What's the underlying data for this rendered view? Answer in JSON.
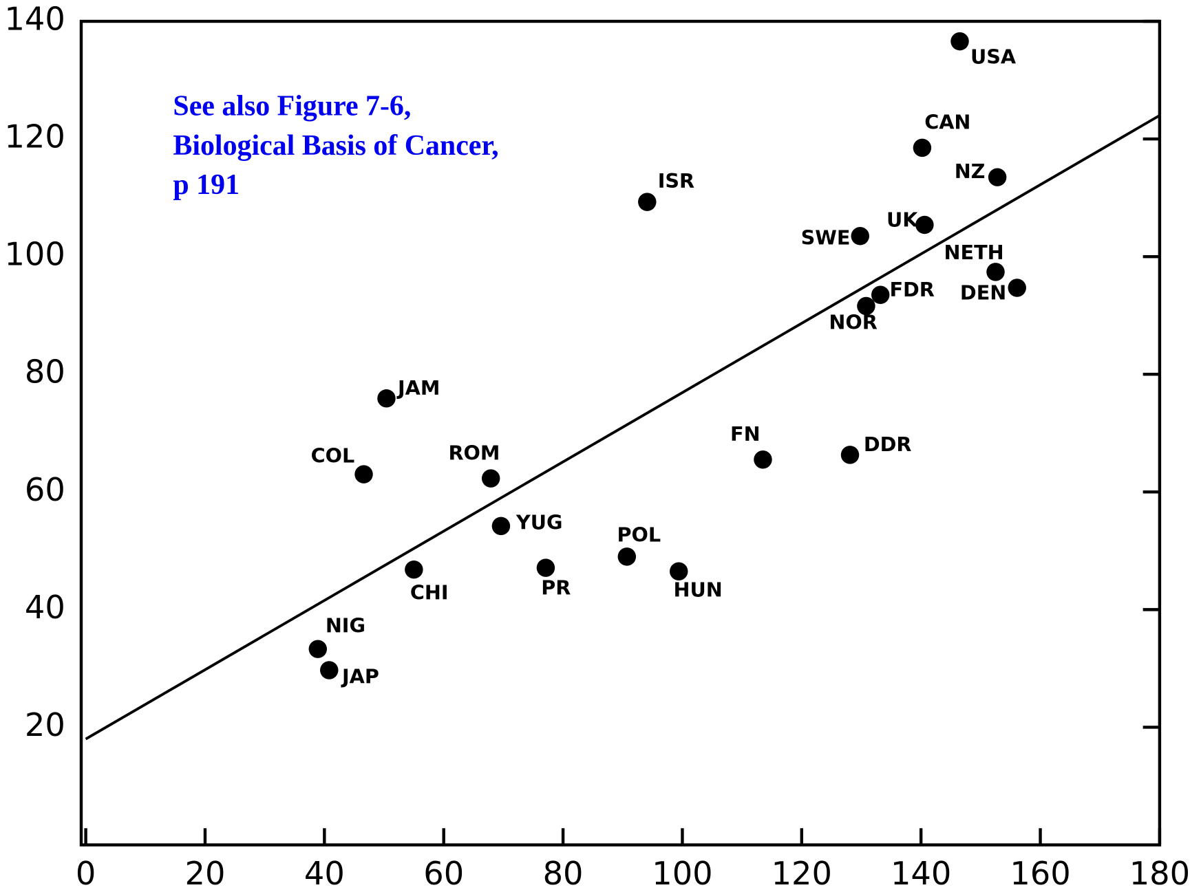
{
  "chart_data": {
    "type": "scatter",
    "annotation": [
      "See also Figure 7-6,",
      "Biological Basis of Cancer,",
      "p  191"
    ],
    "point_labels": [
      "USA",
      "CAN",
      "NZ",
      "ISR",
      "UK",
      "SWE",
      "NETH",
      "DEN",
      "FDR",
      "NOR",
      "JAM",
      "COL",
      "ROM",
      "FN",
      "DDR",
      "YUG",
      "CHI",
      "PR",
      "POL",
      "HUN",
      "NIG",
      "JAP"
    ],
    "x": [
      146.5,
      140.2,
      152.8,
      94.1,
      140.6,
      129.8,
      152.5,
      156.1,
      133.2,
      130.8,
      50.4,
      46.6,
      67.9,
      113.5,
      128.1,
      69.6,
      55.0,
      77.1,
      90.7,
      99.4,
      38.9,
      40.8
    ],
    "values": [
      136.6,
      118.5,
      113.5,
      109.3,
      105.4,
      103.5,
      97.4,
      94.7,
      93.5,
      91.6,
      75.9,
      63.0,
      62.3,
      65.5,
      66.3,
      54.2,
      46.8,
      47.1,
      49.0,
      46.5,
      33.3,
      29.7
    ],
    "color": "#000000",
    "fit_line": {
      "x": [
        0,
        180
      ],
      "y": [
        18,
        124
      ]
    },
    "xlim": [
      0,
      180
    ],
    "ylim": [
      0,
      140
    ],
    "xticks": [
      0,
      20,
      40,
      60,
      80,
      100,
      120,
      140,
      160,
      180
    ],
    "yticks": [
      20,
      40,
      60,
      80,
      100,
      120,
      140
    ],
    "grid": false
  }
}
